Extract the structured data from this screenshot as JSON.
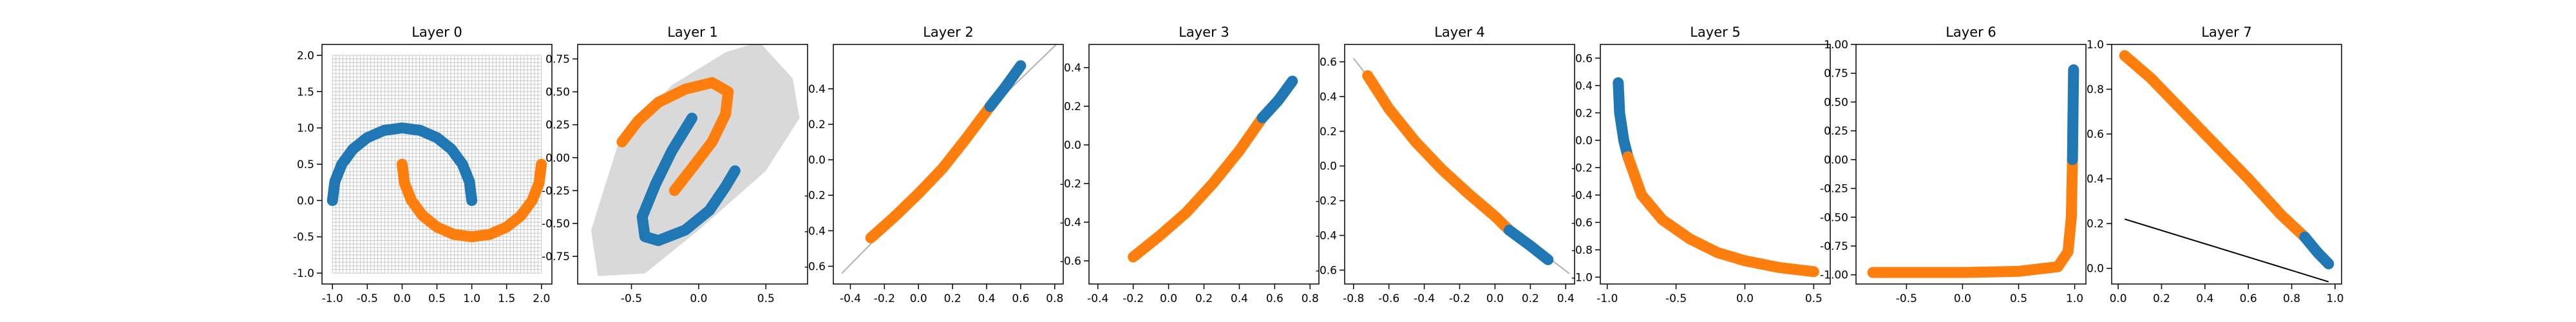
{
  "chart_data": [
    {
      "type": "scatter",
      "title": "Layer 0",
      "mesh": true,
      "xlim": [
        -1.15,
        2.15
      ],
      "ylim": [
        -1.15,
        2.15
      ],
      "xticks": [
        {
          "value": -1,
          "label": "-1.0"
        },
        -0.5,
        {
          "value": 0,
          "label": "0.0"
        },
        0.5,
        {
          "value": 1,
          "label": "1.0"
        },
        1.5,
        {
          "value": 2,
          "label": "2.0"
        }
      ],
      "yticks": [
        {
          "value": -1,
          "label": "-1.0"
        },
        -0.5,
        {
          "value": 0,
          "label": "0.0"
        },
        0.5,
        {
          "value": 1,
          "label": "1.0"
        },
        1.5,
        {
          "value": 2,
          "label": "2.0"
        }
      ],
      "series": [
        {
          "style": "scatter",
          "color": "#1f77b4",
          "x": [
            1,
            0.966,
            0.866,
            0.707,
            0.5,
            0.259,
            0,
            -0.259,
            -0.5,
            -0.707,
            -0.866,
            -0.966,
            -1
          ],
          "y": [
            0,
            0.259,
            0.5,
            0.707,
            0.866,
            0.966,
            1,
            0.966,
            0.866,
            0.707,
            0.5,
            0.259,
            0
          ]
        },
        {
          "style": "scatter",
          "color": "#ff7f0e",
          "x": [
            0,
            0.034,
            0.134,
            0.293,
            0.5,
            0.741,
            1,
            1.259,
            1.5,
            1.707,
            1.866,
            1.966,
            2
          ],
          "y": [
            0.5,
            0.241,
            0,
            -0.207,
            -0.366,
            -0.466,
            -0.5,
            -0.466,
            -0.366,
            -0.207,
            0,
            0.241,
            0.5
          ]
        }
      ]
    },
    {
      "type": "scatter",
      "title": "Layer 1",
      "xlim": [
        -0.9,
        0.81
      ],
      "ylim": [
        -0.96,
        0.86
      ],
      "xticks": [
        -0.5,
        {
          "value": 0,
          "label": "0.0"
        },
        0.5
      ],
      "yticks": [
        -0.75,
        {
          "value": -0.5,
          "label": "-0.50"
        },
        -0.25,
        {
          "value": 0,
          "label": "0.00"
        },
        0.25,
        {
          "value": 0.5,
          "label": "0.50"
        },
        0.75
      ],
      "series": [
        {
          "style": "area",
          "color": "#d9d9d9",
          "x": [
            -0.75,
            -0.8,
            -0.6,
            -0.2,
            0.2,
            0.45,
            0.7,
            0.75,
            0.5,
            0,
            -0.4
          ],
          "y": [
            -0.9,
            -0.55,
            0.1,
            0.55,
            0.8,
            0.88,
            0.6,
            0.3,
            -0.1,
            -0.55,
            -0.88
          ]
        },
        {
          "style": "scatter",
          "color": "#1f77b4",
          "x": [
            -0.05,
            -0.2,
            -0.32,
            -0.42,
            -0.4,
            -0.3,
            -0.1,
            0.08,
            0.2,
            0.27
          ],
          "y": [
            0.3,
            0.05,
            -0.2,
            -0.45,
            -0.6,
            -0.63,
            -0.55,
            -0.4,
            -0.22,
            -0.1
          ]
        },
        {
          "style": "scatter",
          "color": "#ff7f0e",
          "x": [
            -0.57,
            -0.45,
            -0.3,
            -0.1,
            0.1,
            0.22,
            0.2,
            0.1,
            -0.05,
            -0.18
          ],
          "y": [
            0.12,
            0.28,
            0.42,
            0.52,
            0.57,
            0.5,
            0.33,
            0.12,
            -0.08,
            -0.25
          ]
        }
      ]
    },
    {
      "type": "scatter",
      "title": "Layer 2",
      "xlim": [
        -0.5,
        0.85
      ],
      "ylim": [
        -0.7,
        0.65
      ],
      "xticks": [
        -0.4,
        -0.2,
        {
          "value": 0,
          "label": "0.0"
        },
        0.2,
        0.4,
        0.6,
        0.8
      ],
      "yticks": [
        -0.6,
        -0.4,
        -0.2,
        {
          "value": 0,
          "label": "0.0"
        },
        0.2,
        0.4
      ],
      "series": [
        {
          "style": "line",
          "color": "#b0b0b0",
          "x": [
            -0.45,
            0,
            0.4,
            0.82
          ],
          "y": [
            -0.64,
            -0.2,
            0.27,
            0.66
          ]
        },
        {
          "style": "scatter",
          "color": "#ff7f0e",
          "x": [
            -0.28,
            -0.14,
            0,
            0.14,
            0.28,
            0.42
          ],
          "y": [
            -0.44,
            -0.32,
            -0.19,
            -0.05,
            0.12,
            0.3
          ]
        },
        {
          "style": "scatter",
          "color": "#1f77b4",
          "x": [
            0.42,
            0.51,
            0.6
          ],
          "y": [
            0.3,
            0.41,
            0.53
          ]
        }
      ]
    },
    {
      "type": "scatter",
      "title": "Layer 3",
      "xlim": [
        -0.45,
        0.85
      ],
      "ylim": [
        -0.72,
        0.52
      ],
      "xticks": [
        -0.4,
        -0.2,
        {
          "value": 0,
          "label": "0.0"
        },
        0.2,
        0.4,
        0.6,
        0.8
      ],
      "yticks": [
        -0.6,
        -0.4,
        -0.2,
        {
          "value": 0,
          "label": "0.0"
        },
        0.2,
        0.4
      ],
      "series": [
        {
          "style": "scatter",
          "color": "#ff7f0e",
          "x": [
            -0.2,
            -0.05,
            0.1,
            0.25,
            0.4,
            0.53
          ],
          "y": [
            -0.58,
            -0.47,
            -0.35,
            -0.2,
            -0.03,
            0.14
          ]
        },
        {
          "style": "scatter",
          "color": "#1f77b4",
          "x": [
            0.53,
            0.62,
            0.7
          ],
          "y": [
            0.14,
            0.23,
            0.33
          ]
        }
      ]
    },
    {
      "type": "scatter",
      "title": "Layer 4",
      "xlim": [
        -0.85,
        0.45
      ],
      "ylim": [
        -0.68,
        0.7
      ],
      "xticks": [
        -0.8,
        -0.6,
        -0.4,
        -0.2,
        {
          "value": 0,
          "label": "0.0"
        },
        0.2,
        0.4
      ],
      "yticks": [
        -0.6,
        -0.4,
        -0.2,
        {
          "value": 0,
          "label": "0.0"
        },
        0.2,
        0.4,
        0.6
      ],
      "series": [
        {
          "style": "line",
          "color": "#b0b0b0",
          "x": [
            -0.8,
            -0.4,
            0,
            0.42
          ],
          "y": [
            0.62,
            0.1,
            -0.29,
            -0.62
          ]
        },
        {
          "style": "scatter",
          "color": "#ff7f0e",
          "x": [
            -0.72,
            -0.6,
            -0.45,
            -0.3,
            -0.15,
            0,
            0.08
          ],
          "y": [
            0.52,
            0.33,
            0.14,
            -0.02,
            -0.16,
            -0.29,
            -0.37
          ]
        },
        {
          "style": "scatter",
          "color": "#1f77b4",
          "x": [
            0.08,
            0.2,
            0.3
          ],
          "y": [
            -0.37,
            -0.46,
            -0.54
          ]
        }
      ]
    },
    {
      "type": "scatter",
      "title": "Layer 5",
      "xlim": [
        -1.05,
        0.62
      ],
      "ylim": [
        -1.05,
        0.7
      ],
      "xticks": [
        {
          "value": -1,
          "label": "-1.0"
        },
        -0.5,
        {
          "value": 0,
          "label": "0.0"
        },
        0.5
      ],
      "yticks": [
        {
          "value": -1,
          "label": "-1.0"
        },
        -0.8,
        -0.6,
        -0.4,
        -0.2,
        {
          "value": 0,
          "label": "0.0"
        },
        0.2,
        0.4,
        0.6
      ],
      "series": [
        {
          "style": "scatter",
          "color": "#1f77b4",
          "x": [
            -0.92,
            -0.91,
            -0.88,
            -0.85
          ],
          "y": [
            0.42,
            0.2,
            0,
            -0.12
          ]
        },
        {
          "style": "scatter",
          "color": "#ff7f0e",
          "x": [
            -0.85,
            -0.75,
            -0.6,
            -0.4,
            -0.2,
            0,
            0.25,
            0.5
          ],
          "y": [
            -0.12,
            -0.4,
            -0.58,
            -0.72,
            -0.82,
            -0.88,
            -0.93,
            -0.96
          ]
        }
      ]
    },
    {
      "type": "scatter",
      "title": "Layer 6",
      "xlim": [
        -0.95,
        1.1
      ],
      "ylim": [
        -1.08,
        1.0
      ],
      "xticks": [
        -0.5,
        {
          "value": 0,
          "label": "0.0"
        },
        0.5,
        {
          "value": 1,
          "label": "1.0"
        }
      ],
      "yticks": [
        {
          "value": -1,
          "label": "-1.00"
        },
        -0.75,
        {
          "value": -0.5,
          "label": "-0.50"
        },
        -0.25,
        {
          "value": 0,
          "label": "0.00"
        },
        0.25,
        {
          "value": 0.5,
          "label": "0.50"
        },
        0.75,
        {
          "value": 1,
          "label": "1.00"
        }
      ],
      "series": [
        {
          "style": "scatter",
          "color": "#ff7f0e",
          "x": [
            -0.8,
            -0.4,
            0,
            0.5,
            0.85,
            0.94,
            0.97,
            0.98
          ],
          "y": [
            -0.98,
            -0.98,
            -0.98,
            -0.97,
            -0.93,
            -0.8,
            -0.5,
            0
          ]
        },
        {
          "style": "scatter",
          "color": "#1f77b4",
          "x": [
            0.98,
            0.985,
            0.99
          ],
          "y": [
            0,
            0.4,
            0.78
          ]
        }
      ]
    },
    {
      "type": "scatter",
      "title": "Layer 7",
      "xlim": [
        -0.03,
        1.03
      ],
      "ylim": [
        -0.07,
        1.0
      ],
      "xticks": [
        {
          "value": 0,
          "label": "0.0"
        },
        0.2,
        0.4,
        0.6,
        0.8,
        {
          "value": 1,
          "label": "1.0"
        }
      ],
      "yticks": [
        {
          "value": 0,
          "label": "0.0"
        },
        0.2,
        0.4,
        0.6,
        0.8,
        {
          "value": 1,
          "label": "1.0"
        }
      ],
      "series": [
        {
          "style": "line",
          "color": "#000000",
          "x": [
            0.03,
            0.97
          ],
          "y": [
            0.22,
            -0.06
          ]
        },
        {
          "style": "scatter",
          "color": "#ff7f0e",
          "x": [
            0.03,
            0.15,
            0.3,
            0.45,
            0.6,
            0.75,
            0.86
          ],
          "y": [
            0.95,
            0.85,
            0.7,
            0.55,
            0.4,
            0.24,
            0.14
          ]
        },
        {
          "style": "scatter",
          "color": "#1f77b4",
          "x": [
            0.86,
            0.92,
            0.97
          ],
          "y": [
            0.14,
            0.07,
            0.02
          ]
        }
      ]
    }
  ]
}
